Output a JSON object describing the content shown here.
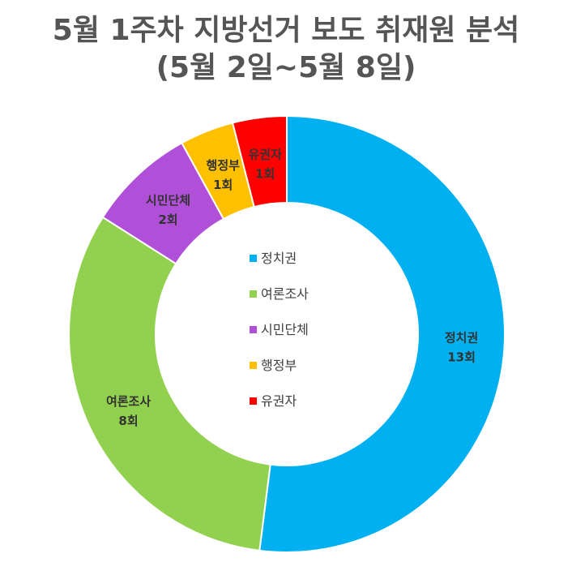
{
  "chart_data": {
    "type": "pie",
    "title": [
      "5월 1주차 지방선거 보도 취재원 분석",
      "(5월 2일~5월 8일)"
    ],
    "unit": "회",
    "slices": [
      {
        "name": "정치권",
        "value": 13,
        "label": "13회",
        "color": "#00B0F0"
      },
      {
        "name": "여론조사",
        "value": 8,
        "label": "8회",
        "color": "#92D050"
      },
      {
        "name": "시민단체",
        "value": 2,
        "label": "2회",
        "color": "#B050D8"
      },
      {
        "name": "행정부",
        "value": 1,
        "label": "1회",
        "color": "#FFC000"
      },
      {
        "name": "유권자",
        "value": 1,
        "label": "1회",
        "color": "#FF0000"
      }
    ],
    "legend_position": "center",
    "donut": true
  }
}
